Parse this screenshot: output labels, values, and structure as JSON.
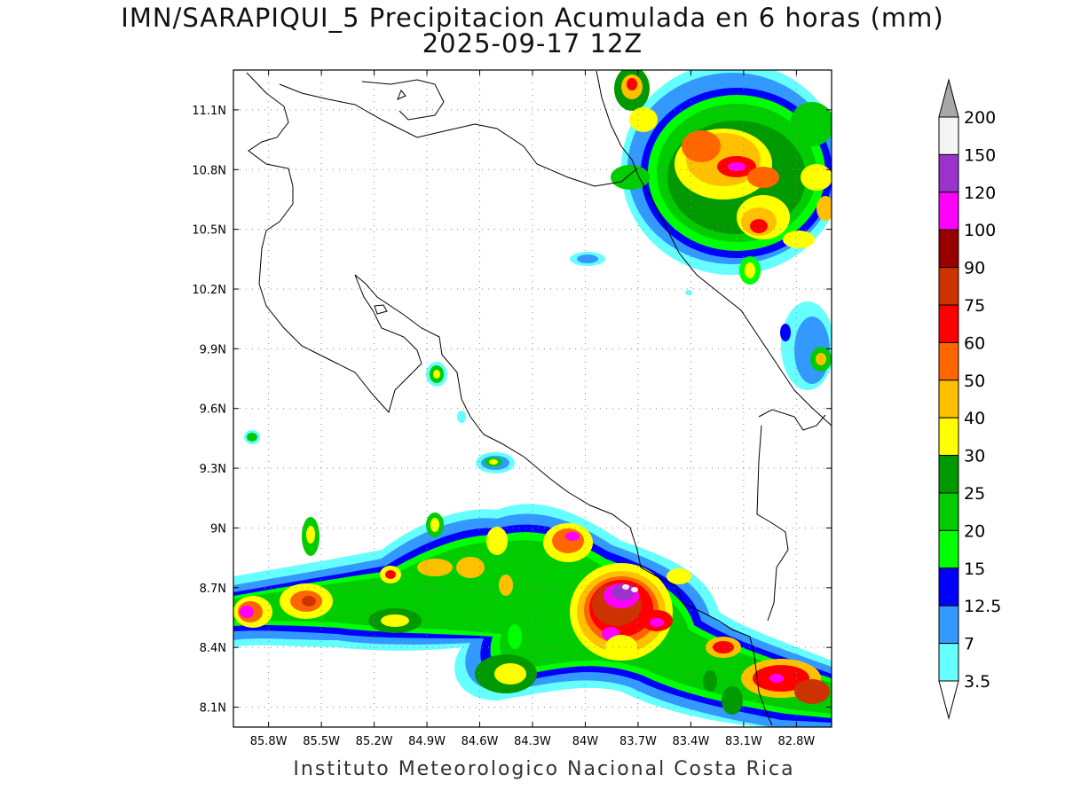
{
  "title": {
    "line1": "IMN/SARAPIQUI_5 Precipitacion Acumulada en 6 horas (mm)",
    "line2": "2025-09-17 12Z"
  },
  "footer": "Instituto Meteorologico Nacional Costa Rica",
  "axes": {
    "lon_range": [
      -86.0,
      -82.6
    ],
    "lat_range": [
      8.0,
      11.3
    ],
    "lon_ticks": [
      "85.8W",
      "85.5W",
      "85.2W",
      "84.9W",
      "84.6W",
      "84.3W",
      "84W",
      "83.7W",
      "83.4W",
      "83.1W",
      "82.8W"
    ],
    "lat_ticks": [
      "11.1N",
      "10.8N",
      "10.5N",
      "10.2N",
      "9.9N",
      "9.6N",
      "9.3N",
      "9N",
      "8.7N",
      "8.4N",
      "8.1N"
    ],
    "grid": "dotted"
  },
  "colorbar": {
    "labels": [
      "200",
      "150",
      "120",
      "100",
      "90",
      "75",
      "60",
      "50",
      "40",
      "30",
      "25",
      "20",
      "15",
      "12.5",
      "7",
      "3.5"
    ],
    "colors": [
      "#a8a8a8",
      "#f4f4f4",
      "#9a33cc",
      "#ff00ff",
      "#990000",
      "#cc3300",
      "#ff0000",
      "#ff6600",
      "#ffc000",
      "#ffff00",
      "#009900",
      "#00cc00",
      "#00ff00",
      "#0000ff",
      "#3399ff",
      "#66ffff",
      "#ffffff"
    ]
  },
  "palette": {
    "c35": "#66ffff",
    "c7": "#3399ff",
    "c125": "#0000ff",
    "c15": "#00ff00",
    "c20": "#00cc00",
    "c25": "#009900",
    "c30": "#ffff00",
    "c40": "#ffc000",
    "c50": "#ff6600",
    "c60": "#ff0000",
    "c75": "#cc3300",
    "c90": "#990000",
    "c100": "#ff00ff",
    "c120": "#9a33cc",
    "c150": "#f4f4f4"
  }
}
